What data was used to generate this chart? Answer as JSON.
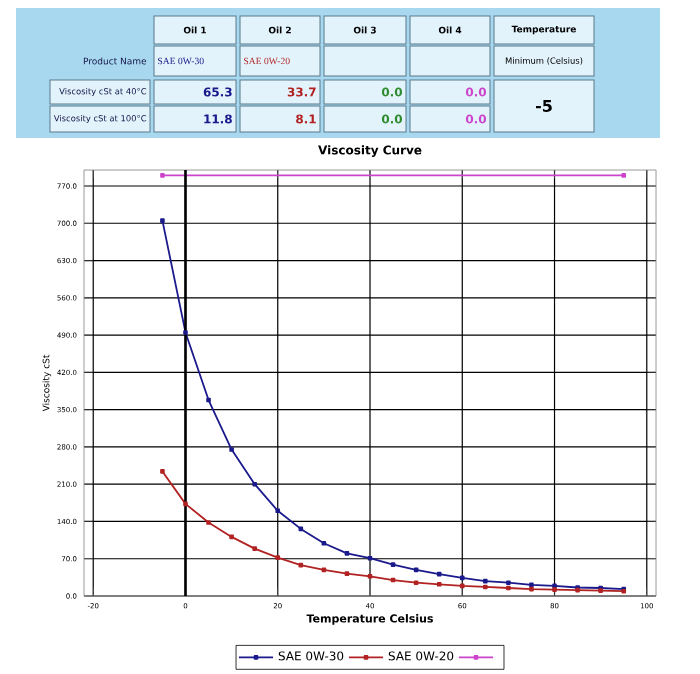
{
  "chart_data": {
    "type": "line",
    "title": "Viscosity Curve",
    "xlabel": "Temperature Celsius",
    "ylabel": "Viscosity cSt",
    "x": [
      -5,
      0,
      5,
      10,
      15,
      20,
      25,
      30,
      35,
      40,
      45,
      50,
      55,
      60,
      65,
      70,
      75,
      80,
      85,
      90,
      95
    ],
    "series": [
      {
        "name": "SAE 0W-30",
        "color": "#1a1a8c",
        "values": [
          705,
          495,
          368,
          275,
          210,
          160,
          126,
          99,
          80,
          71,
          59,
          49,
          41,
          34,
          28,
          25,
          21,
          19,
          16,
          15,
          13
        ]
      },
      {
        "name": "SAE 0W-20",
        "color": "#b22222",
        "values": [
          234,
          173,
          138,
          111,
          89,
          72,
          58,
          49,
          42,
          37,
          30,
          25,
          22,
          19,
          17,
          15,
          13,
          12,
          11,
          10,
          9
        ]
      },
      {
        "color": "#cc44cc",
        "x": [
          -5,
          95
        ],
        "values": [
          790,
          790
        ]
      }
    ],
    "xlim": [
      -22,
      102
    ],
    "xticks": [
      -20,
      0,
      20,
      40,
      60,
      80,
      100
    ],
    "ylim": [
      0,
      800
    ],
    "yticks": [
      {
        "value": 0,
        "label": "0.0"
      },
      {
        "value": 70,
        "label": "70.0"
      },
      {
        "value": 140,
        "label": "140.0"
      },
      {
        "value": 210,
        "label": "210.0"
      },
      {
        "value": 280,
        "label": "280.0"
      },
      {
        "value": 350,
        "label": "350.0"
      },
      {
        "value": 420,
        "label": "420.0"
      },
      {
        "value": 490,
        "label": "490.0"
      },
      {
        "value": 560,
        "label": "560.0"
      },
      {
        "value": 630,
        "label": "630.0"
      },
      {
        "value": 700,
        "label": "700.0"
      },
      {
        "value": 770,
        "label": "770.0"
      }
    ],
    "ref_lines": [
      {
        "axis": "x",
        "value": 0,
        "color": "#000000"
      }
    ],
    "grid": true,
    "legend": "bottom",
    "marker": "square",
    "annotations": [
      "Oil 1",
      "Oil 2",
      "Oil 3",
      "Oil 4",
      "Temperature",
      "Product Name",
      "SAE 0W-30",
      "SAE 0W-20",
      "Minimum (Celsius)",
      "Viscosity cSt at 40°C",
      "65.3",
      "33.7",
      "0.0",
      "0.0",
      "-5",
      "Viscosity cSt at 100°C",
      "11.8",
      "8.1",
      "0.0",
      "0.0"
    ]
  }
}
